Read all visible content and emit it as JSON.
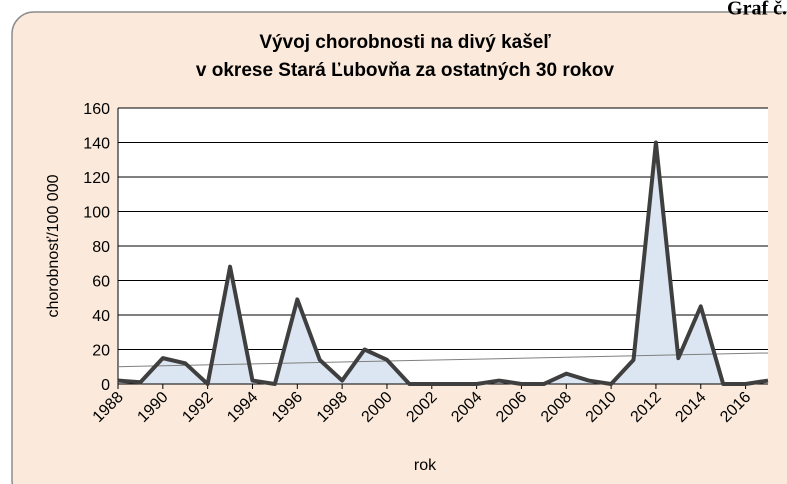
{
  "header": {
    "text": "Graf č."
  },
  "chart_data": {
    "type": "area",
    "title": [
      "Vývoj chorobnosti na divý kašeľ",
      "v okrese Stará Ľubovňa za ostatných 30 rokov"
    ],
    "x_label": "rok",
    "y_label": "chorobnosť/100 000",
    "x": [
      1988,
      1989,
      1990,
      1991,
      1992,
      1993,
      1994,
      1995,
      1996,
      1997,
      1998,
      1999,
      2000,
      2001,
      2002,
      2003,
      2004,
      2005,
      2006,
      2007,
      2008,
      2009,
      2010,
      2011,
      2012,
      2013,
      2014,
      2015,
      2016,
      2017
    ],
    "values": [
      2,
      1,
      15,
      12,
      0,
      68,
      2,
      0,
      49,
      14,
      2,
      20,
      14,
      0,
      0,
      0,
      0,
      2,
      0,
      0,
      6,
      2,
      0,
      14,
      140,
      15,
      45,
      0,
      0,
      2
    ],
    "color": "#3f3f3f",
    "fill": "#dce6f2",
    "trendline": {
      "x": [
        1988,
        2017
      ],
      "values": [
        10,
        18
      ],
      "color": "#7f7f7f"
    },
    "xlim": [
      1988,
      2017
    ],
    "xticks": [
      1988,
      1990,
      1992,
      1994,
      1996,
      1998,
      2000,
      2002,
      2004,
      2006,
      2008,
      2010,
      2012,
      2014,
      2016
    ],
    "ylim": [
      0,
      160
    ],
    "yticks": [
      0,
      20,
      40,
      60,
      80,
      100,
      120,
      140,
      160
    ],
    "grid": true
  }
}
